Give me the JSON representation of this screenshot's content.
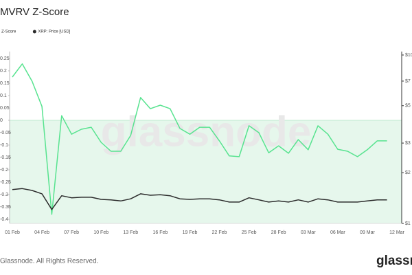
{
  "chart_data": {
    "type": "line",
    "title": "MVRV Z-Score",
    "categories": [
      "01 Feb",
      null,
      null,
      "04 Feb",
      null,
      null,
      "07 Feb",
      null,
      null,
      "10 Feb",
      null,
      null,
      "13 Feb",
      null,
      null,
      "16 Feb",
      null,
      null,
      "19 Feb",
      null,
      null,
      "22 Feb",
      null,
      null,
      "25 Feb",
      null,
      null,
      "28 Feb",
      null,
      null,
      "03 Mar",
      null,
      null,
      "06 Mar",
      null,
      null,
      "09 Mar",
      null,
      null,
      "12 Mar"
    ],
    "series": [
      {
        "name": "Z-Score",
        "color": "#57e38f",
        "values": [
          0.175,
          0.228,
          0.158,
          0.056,
          -0.38,
          0.019,
          -0.056,
          -0.036,
          -0.028,
          -0.089,
          -0.125,
          -0.125,
          -0.061,
          0.092,
          0.047,
          0.061,
          0.047,
          -0.033,
          -0.056,
          -0.028,
          -0.028,
          -0.083,
          -0.144,
          -0.147,
          -0.022,
          -0.05,
          -0.131,
          -0.103,
          -0.133,
          -0.078,
          -0.119,
          -0.022,
          -0.056,
          -0.117,
          -0.125,
          -0.147,
          -0.119,
          -0.083,
          -0.083,
          null
        ]
      },
      {
        "name": "XRP: Price [USD]",
        "color": "#2b2b2b",
        "axis": "y2",
        "values": [
          1.59,
          1.61,
          1.57,
          1.5,
          1.21,
          1.46,
          1.42,
          1.43,
          1.43,
          1.39,
          1.38,
          1.36,
          1.4,
          1.5,
          1.47,
          1.48,
          1.46,
          1.4,
          1.39,
          1.4,
          1.4,
          1.38,
          1.34,
          1.34,
          1.42,
          1.38,
          1.34,
          1.36,
          1.34,
          1.38,
          1.34,
          1.4,
          1.38,
          1.34,
          1.34,
          1.34,
          1.36,
          1.38,
          1.38,
          null
        ]
      }
    ],
    "ylim": [
      -0.4,
      0.25
    ],
    "yticks": [
      0.25,
      0.2,
      0.15,
      0.1,
      0.05,
      0,
      -0.05,
      -0.1,
      -0.15,
      -0.2,
      -0.25,
      -0.3,
      -0.35,
      -0.4
    ],
    "y2lim": [
      1,
      10
    ],
    "y2_log_scale": true,
    "y2ticks": [
      {
        "value": 10,
        "label": "$10"
      },
      {
        "value": 7,
        "label": "$7"
      },
      {
        "value": 5,
        "label": "$5"
      },
      {
        "value": 3,
        "label": "$3"
      },
      {
        "value": 2,
        "label": "$2"
      },
      {
        "value": 1,
        "label": "$1"
      }
    ],
    "shade_below": 0,
    "shade_color": "#e6f7ec",
    "watermark": "glassnode",
    "footer": "Glassnode. All Rights Reserved.",
    "logo": "glassnode"
  }
}
